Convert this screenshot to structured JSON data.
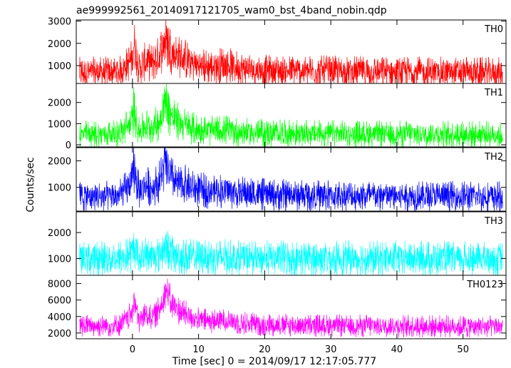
{
  "chart_data": {
    "type": "line",
    "title": "ae999992561_20140917121705_wam0_bst_4band_nobin.qdp",
    "xlabel": "Time [sec] 0 = 2014/09/17 12:17:05.777",
    "ylabel": "Counts/sec",
    "xlim": [
      -8.5,
      56.5
    ],
    "xticks": [
      0,
      10,
      20,
      30,
      40,
      50
    ],
    "xtick_labels": [
      "0",
      "10",
      "20",
      "30",
      "40",
      "50"
    ],
    "grid": false,
    "panels": [
      {
        "name": "TH0",
        "color": "#ff0000",
        "ylim": [
          200,
          3050
        ],
        "yticks": [
          1000,
          2000,
          3000
        ],
        "ytick_labels": [
          "1000",
          "2000",
          "3000"
        ],
        "summary_x": [
          -8,
          -2,
          0,
          0.2,
          1,
          2,
          3,
          4,
          5,
          6,
          7,
          8,
          9,
          10,
          12,
          14,
          16,
          20,
          30,
          40,
          50,
          56
        ],
        "summary_y": [
          700,
          720,
          1300,
          2000,
          900,
          1200,
          1100,
          1400,
          2200,
          1600,
          1400,
          1300,
          1100,
          1000,
          950,
          1050,
          900,
          780,
          740,
          720,
          700,
          690
        ],
        "noise": [
          450,
          700
        ]
      },
      {
        "name": "TH1",
        "color": "#00ff00",
        "ylim": [
          -100,
          2900
        ],
        "yticks": [
          0,
          1000,
          2000
        ],
        "ytick_labels": [
          "0",
          "1000",
          "2000"
        ],
        "summary_x": [
          -8,
          -2,
          0,
          0.2,
          1,
          2,
          3,
          4,
          5,
          6,
          7,
          8,
          9,
          10,
          12,
          14,
          16,
          20,
          30,
          40,
          50,
          56
        ],
        "summary_y": [
          500,
          520,
          1100,
          1800,
          600,
          900,
          800,
          1100,
          2100,
          1300,
          1100,
          900,
          800,
          700,
          650,
          700,
          600,
          550,
          520,
          510,
          500,
          490
        ],
        "noise": [
          400,
          650
        ]
      },
      {
        "name": "TH2",
        "color": "#0000ff",
        "ylim": [
          100,
          2500
        ],
        "yticks": [
          1000,
          2000
        ],
        "ytick_labels": [
          "1000",
          "2000"
        ],
        "summary_x": [
          -8,
          -2,
          0,
          0.2,
          1,
          2,
          3,
          4,
          5,
          6,
          7,
          8,
          9,
          10,
          12,
          14,
          16,
          20,
          30,
          40,
          50,
          56
        ],
        "summary_y": [
          650,
          670,
          1200,
          1800,
          800,
          1100,
          950,
          1200,
          1900,
          1300,
          1100,
          1100,
          950,
          900,
          850,
          880,
          800,
          720,
          680,
          670,
          650,
          640
        ],
        "noise": [
          380,
          600
        ]
      },
      {
        "name": "TH3",
        "color": "#00ffff",
        "ylim": [
          350,
          2800
        ],
        "yticks": [
          1000,
          2000
        ],
        "ytick_labels": [
          "1000",
          "2000"
        ],
        "summary_x": [
          -8,
          -2,
          0,
          0.2,
          1,
          2,
          3,
          4,
          5,
          6,
          7,
          8,
          9,
          10,
          12,
          14,
          16,
          20,
          30,
          40,
          50,
          56
        ],
        "summary_y": [
          1000,
          1010,
          1150,
          1500,
          1050,
          1150,
          1100,
          1150,
          1450,
          1150,
          1100,
          1080,
          1050,
          1040,
          1030,
          1050,
          1020,
          1010,
          1000,
          1000,
          990,
          990
        ],
        "noise": [
          450,
          700
        ]
      },
      {
        "name": "TH0123",
        "color": "#ff00ff",
        "ylim": [
          1300,
          9000
        ],
        "yticks": [
          2000,
          4000,
          6000,
          8000
        ],
        "ytick_labels": [
          "2000",
          "4000",
          "6000",
          "8000"
        ],
        "summary_x": [
          -8,
          -2,
          0,
          0.2,
          1,
          2,
          3,
          4,
          5,
          6,
          7,
          8,
          9,
          10,
          12,
          14,
          16,
          20,
          30,
          40,
          50,
          56
        ],
        "summary_y": [
          2850,
          2900,
          4300,
          6500,
          3300,
          4300,
          3900,
          4700,
          7200,
          5500,
          4700,
          4300,
          3900,
          3600,
          3400,
          3600,
          3250,
          3000,
          2900,
          2850,
          2800,
          2780
        ],
        "noise": [
          900,
          1400
        ]
      }
    ]
  }
}
